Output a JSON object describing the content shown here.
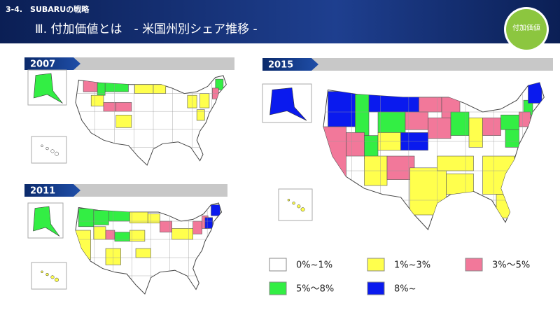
{
  "header": {
    "section": "3-4.　SUBARUの戦略",
    "title": "Ⅲ. 付加価値とは　- 米国州別シェア推移 -",
    "badge": "付加価値"
  },
  "maps": [
    {
      "year": "2007"
    },
    {
      "year": "2011"
    },
    {
      "year": "2015"
    }
  ],
  "legend": [
    {
      "label": "0%~1%",
      "color": "#ffffff"
    },
    {
      "label": "1%~3%",
      "color": "#ffff4d"
    },
    {
      "label": "3%～5%",
      "color": "#f2789a"
    },
    {
      "label": "5%～8%",
      "color": "#33ee44"
    },
    {
      "label": "8%~",
      "color": "#0a1aee"
    }
  ]
}
